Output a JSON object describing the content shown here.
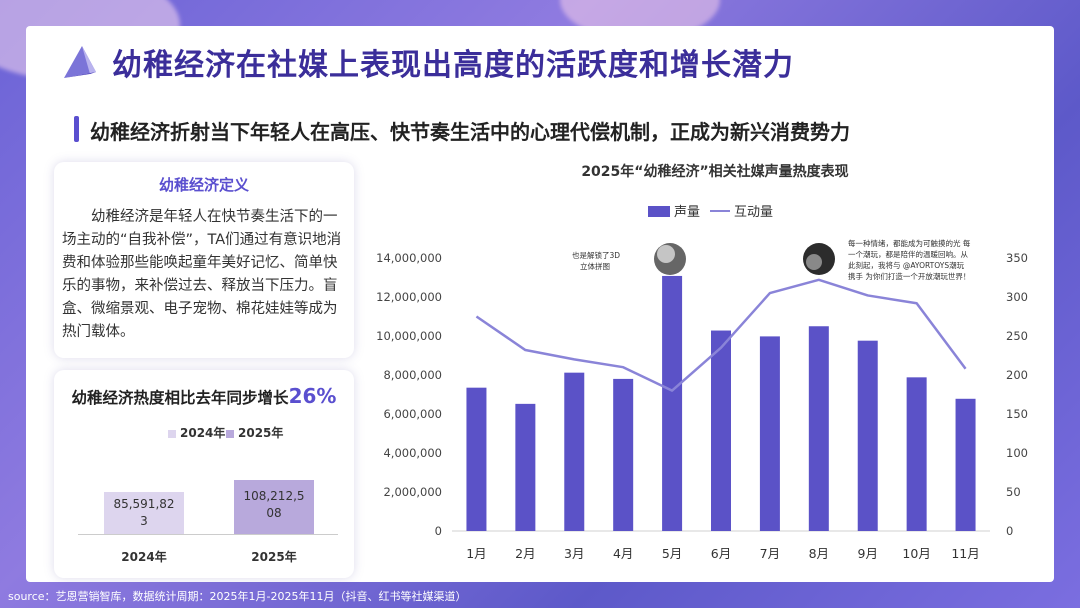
{
  "header": {
    "title": "幼稚经济在社媒上表现出高度的活跃度和增长潜力",
    "subtitle": "幼稚经济折射当下年轻人在高压、快节奏生活中的心理代偿机制，正成为新兴消费势力"
  },
  "definition": {
    "title": "幼稚经济定义",
    "text": "幼稚经济是年轻人在快节奏生活下的一场主动的“自我补偿”，TA们通过有意识地消费和体验那些能唤起童年美好记忆、简单快乐的事物，来补偿过去、释放当下压力。盲盒、微缩景观、电子宠物、棉花娃娃等成为热门载体。"
  },
  "growth": {
    "title_prefix": "幼稚经济热度相比去年同步增长",
    "title_value": "26%",
    "legend": [
      "2024年",
      "2025年"
    ],
    "bars": [
      {
        "category": "2024年",
        "label_line1": "85,591,82",
        "label_line2": "3",
        "value": 85591823,
        "color": "#ddd5ee"
      },
      {
        "category": "2025年",
        "label_line1": "108,212,5",
        "label_line2": "08",
        "value": 108212508,
        "color": "#b8a9dc"
      }
    ]
  },
  "chart_data": {
    "type": "bar",
    "title": "2025年“幼稚经济”相关社媒声量热度表现",
    "categories": [
      "1月",
      "2月",
      "3月",
      "4月",
      "5月",
      "6月",
      "7月",
      "8月",
      "9月",
      "10月",
      "11月"
    ],
    "series": [
      {
        "name": "声量",
        "kind": "bar",
        "axis": "left",
        "color": "#5b52c7",
        "values": [
          7350000,
          6520000,
          8120000,
          7800000,
          13080000,
          10280000,
          9980000,
          10500000,
          9760000,
          7880000,
          6780000
        ]
      },
      {
        "name": "互动量",
        "kind": "line",
        "axis": "right",
        "color": "#8a84d8",
        "values": [
          275,
          232,
          220,
          210,
          180,
          235,
          305,
          322,
          302,
          292,
          208
        ]
      }
    ],
    "y_left": {
      "min": 0,
      "max": 14000000,
      "ticks": [
        "0",
        "2,000,000",
        "4,000,000",
        "6,000,000",
        "8,000,000",
        "10,000,000",
        "12,000,000",
        "14,000,000"
      ]
    },
    "y_right": {
      "min": 0,
      "max": 350,
      "ticks": [
        "0",
        "50",
        "100",
        "150",
        "200",
        "250",
        "300",
        "350"
      ]
    },
    "legend_position": "top",
    "annotations": [
      {
        "text_line1": "也是解锁了3D",
        "text_line2": "立体拼图"
      },
      {
        "text_line1": "每一种情绪，都能成为可触摸的光 每",
        "text_line2": "一个潮玩，都是陪伴的温暖回响。从",
        "text_line3": "此刻起，我将与 @AYORTOYS潮玩",
        "text_line4": "携手 为你们打造一个开放潮玩世界！"
      }
    ]
  },
  "source": "source：艺恩营销智库，数据统计周期：2025年1月-2025年11月（抖音、红书等社媒渠道）"
}
